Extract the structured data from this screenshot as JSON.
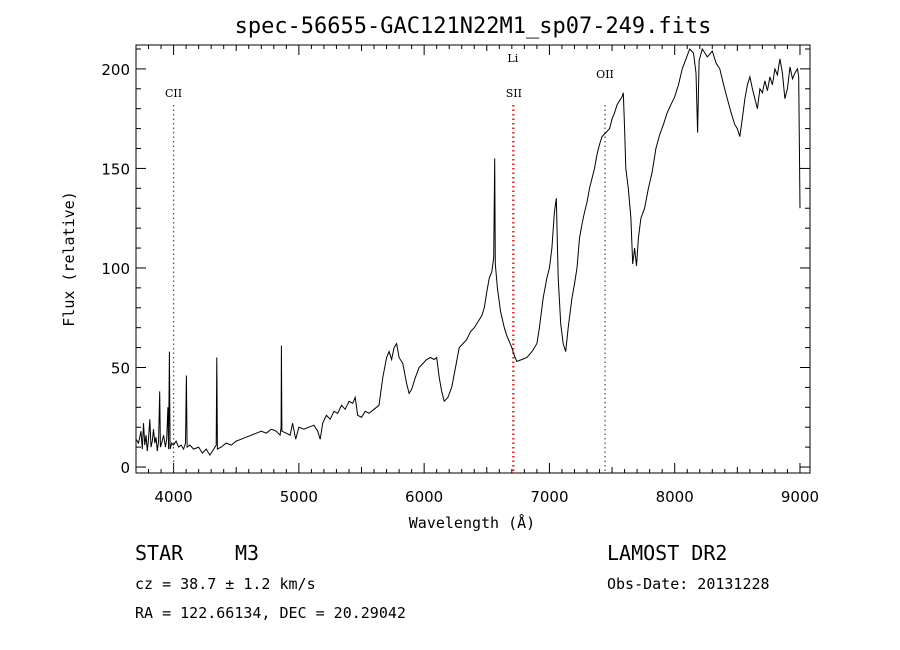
{
  "chart_data": {
    "type": "line",
    "title": "spec-56655-GAC121N22M1_sp07-249.fits",
    "xlabel": "Wavelength (Å)",
    "ylabel": "Flux (relative)",
    "xlim": [
      3700,
      9080
    ],
    "ylim": [
      -3,
      212
    ],
    "xticks": [
      4000,
      5000,
      6000,
      7000,
      8000,
      9000
    ],
    "yticks": [
      0,
      50,
      100,
      150,
      200
    ],
    "line_markers": [
      {
        "label": "CII",
        "x": 4000,
        "color": "#555555"
      },
      {
        "label": "Li",
        "x": 6708,
        "color": "#dd2222"
      },
      {
        "label": "SII",
        "x": 6716,
        "color": "#dd2222"
      },
      {
        "label": "OII",
        "x": 7444,
        "color": "#555555"
      }
    ],
    "series": [
      {
        "name": "spectrum",
        "points": [
          [
            3700,
            14
          ],
          [
            3720,
            12
          ],
          [
            3740,
            18
          ],
          [
            3750,
            9
          ],
          [
            3760,
            22
          ],
          [
            3770,
            11
          ],
          [
            3780,
            16
          ],
          [
            3790,
            8
          ],
          [
            3800,
            14
          ],
          [
            3810,
            24
          ],
          [
            3820,
            10
          ],
          [
            3830,
            13
          ],
          [
            3840,
            19
          ],
          [
            3850,
            12
          ],
          [
            3860,
            15
          ],
          [
            3870,
            8
          ],
          [
            3880,
            13
          ],
          [
            3889,
            38
          ],
          [
            3895,
            10
          ],
          [
            3905,
            12
          ],
          [
            3920,
            16
          ],
          [
            3935,
            10
          ],
          [
            3945,
            14
          ],
          [
            3955,
            30
          ],
          [
            3960,
            9
          ],
          [
            3967,
            58
          ],
          [
            3972,
            9
          ],
          [
            3985,
            12
          ],
          [
            4000,
            11
          ],
          [
            4020,
            13
          ],
          [
            4040,
            10
          ],
          [
            4060,
            11
          ],
          [
            4080,
            9
          ],
          [
            4095,
            12
          ],
          [
            4102,
            46
          ],
          [
            4108,
            10
          ],
          [
            4130,
            11
          ],
          [
            4160,
            9
          ],
          [
            4200,
            10
          ],
          [
            4230,
            7
          ],
          [
            4260,
            9
          ],
          [
            4290,
            6
          ],
          [
            4320,
            9
          ],
          [
            4340,
            11
          ],
          [
            4345,
            55
          ],
          [
            4350,
            9
          ],
          [
            4380,
            10
          ],
          [
            4420,
            12
          ],
          [
            4460,
            11
          ],
          [
            4500,
            13
          ],
          [
            4540,
            14
          ],
          [
            4580,
            15
          ],
          [
            4620,
            16
          ],
          [
            4660,
            17
          ],
          [
            4700,
            18
          ],
          [
            4740,
            17
          ],
          [
            4780,
            19
          ],
          [
            4820,
            18
          ],
          [
            4850,
            16
          ],
          [
            4858,
            20
          ],
          [
            4861,
            61
          ],
          [
            4865,
            18
          ],
          [
            4900,
            17
          ],
          [
            4930,
            16
          ],
          [
            4950,
            22
          ],
          [
            4975,
            14
          ],
          [
            5000,
            20
          ],
          [
            5040,
            19
          ],
          [
            5080,
            20
          ],
          [
            5120,
            21
          ],
          [
            5150,
            18
          ],
          [
            5170,
            14
          ],
          [
            5190,
            22
          ],
          [
            5220,
            26
          ],
          [
            5250,
            24
          ],
          [
            5280,
            28
          ],
          [
            5310,
            27
          ],
          [
            5340,
            31
          ],
          [
            5370,
            29
          ],
          [
            5400,
            33
          ],
          [
            5430,
            32
          ],
          [
            5450,
            35
          ],
          [
            5470,
            26
          ],
          [
            5500,
            25
          ],
          [
            5530,
            28
          ],
          [
            5560,
            27
          ],
          [
            5600,
            29
          ],
          [
            5640,
            31
          ],
          [
            5670,
            45
          ],
          [
            5700,
            55
          ],
          [
            5720,
            58
          ],
          [
            5740,
            54
          ],
          [
            5760,
            60
          ],
          [
            5780,
            62
          ],
          [
            5800,
            55
          ],
          [
            5830,
            52
          ],
          [
            5860,
            42
          ],
          [
            5880,
            37
          ],
          [
            5900,
            39
          ],
          [
            5930,
            45
          ],
          [
            5960,
            50
          ],
          [
            5990,
            52
          ],
          [
            6020,
            54
          ],
          [
            6050,
            55
          ],
          [
            6080,
            54
          ],
          [
            6100,
            55
          ],
          [
            6120,
            45
          ],
          [
            6140,
            38
          ],
          [
            6160,
            33
          ],
          [
            6190,
            35
          ],
          [
            6220,
            40
          ],
          [
            6250,
            50
          ],
          [
            6280,
            60
          ],
          [
            6310,
            62
          ],
          [
            6340,
            64
          ],
          [
            6370,
            68
          ],
          [
            6400,
            70
          ],
          [
            6430,
            73
          ],
          [
            6460,
            76
          ],
          [
            6480,
            80
          ],
          [
            6500,
            88
          ],
          [
            6520,
            95
          ],
          [
            6540,
            98
          ],
          [
            6555,
            105
          ],
          [
            6563,
            155
          ],
          [
            6568,
            102
          ],
          [
            6585,
            90
          ],
          [
            6610,
            78
          ],
          [
            6640,
            70
          ],
          [
            6660,
            66
          ],
          [
            6680,
            63
          ],
          [
            6700,
            60
          ],
          [
            6720,
            56
          ],
          [
            6740,
            53
          ],
          [
            6780,
            54
          ],
          [
            6820,
            55
          ],
          [
            6860,
            58
          ],
          [
            6900,
            62
          ],
          [
            6920,
            70
          ],
          [
            6950,
            85
          ],
          [
            6980,
            95
          ],
          [
            7000,
            100
          ],
          [
            7020,
            110
          ],
          [
            7040,
            128
          ],
          [
            7055,
            135
          ],
          [
            7070,
            95
          ],
          [
            7090,
            72
          ],
          [
            7110,
            62
          ],
          [
            7130,
            58
          ],
          [
            7150,
            70
          ],
          [
            7180,
            85
          ],
          [
            7200,
            92
          ],
          [
            7220,
            100
          ],
          [
            7240,
            115
          ],
          [
            7260,
            122
          ],
          [
            7280,
            128
          ],
          [
            7300,
            133
          ],
          [
            7320,
            140
          ],
          [
            7340,
            145
          ],
          [
            7360,
            150
          ],
          [
            7380,
            157
          ],
          [
            7400,
            162
          ],
          [
            7420,
            166
          ],
          [
            7450,
            168
          ],
          [
            7480,
            170
          ],
          [
            7500,
            175
          ],
          [
            7520,
            178
          ],
          [
            7540,
            182
          ],
          [
            7560,
            184
          ],
          [
            7580,
            186
          ],
          [
            7590,
            188
          ],
          [
            7600,
            170
          ],
          [
            7610,
            150
          ],
          [
            7630,
            140
          ],
          [
            7650,
            125
          ],
          [
            7665,
            102
          ],
          [
            7680,
            110
          ],
          [
            7695,
            101
          ],
          [
            7710,
            115
          ],
          [
            7730,
            125
          ],
          [
            7760,
            130
          ],
          [
            7790,
            140
          ],
          [
            7820,
            148
          ],
          [
            7850,
            160
          ],
          [
            7880,
            167
          ],
          [
            7910,
            172
          ],
          [
            7940,
            178
          ],
          [
            7970,
            182
          ],
          [
            8000,
            186
          ],
          [
            8030,
            192
          ],
          [
            8060,
            200
          ],
          [
            8090,
            205
          ],
          [
            8120,
            210
          ],
          [
            8150,
            208
          ],
          [
            8170,
            198
          ],
          [
            8183,
            168
          ],
          [
            8195,
            204
          ],
          [
            8220,
            210
          ],
          [
            8260,
            206
          ],
          [
            8300,
            209
          ],
          [
            8330,
            203
          ],
          [
            8360,
            200
          ],
          [
            8390,
            192
          ],
          [
            8420,
            185
          ],
          [
            8450,
            178
          ],
          [
            8480,
            172
          ],
          [
            8500,
            170
          ],
          [
            8520,
            166
          ],
          [
            8540,
            175
          ],
          [
            8560,
            185
          ],
          [
            8580,
            192
          ],
          [
            8600,
            196
          ],
          [
            8620,
            190
          ],
          [
            8640,
            185
          ],
          [
            8660,
            180
          ],
          [
            8680,
            190
          ],
          [
            8700,
            188
          ],
          [
            8720,
            194
          ],
          [
            8740,
            189
          ],
          [
            8760,
            196
          ],
          [
            8780,
            192
          ],
          [
            8800,
            200
          ],
          [
            8820,
            197
          ],
          [
            8840,
            205
          ],
          [
            8860,
            198
          ],
          [
            8880,
            185
          ],
          [
            8900,
            190
          ],
          [
            8920,
            201
          ],
          [
            8940,
            195
          ],
          [
            8960,
            198
          ],
          [
            8980,
            200
          ],
          [
            8990,
            196
          ],
          [
            9000,
            130
          ]
        ]
      }
    ]
  },
  "info": {
    "object_class": "STAR",
    "subclass": "M3",
    "cz": "cz = 38.7 ± 1.2 km/s",
    "radec": "RA = 122.66134, DEC =  20.29042",
    "survey": "LAMOST DR2",
    "obs_date": "Obs-Date: 20131228"
  }
}
